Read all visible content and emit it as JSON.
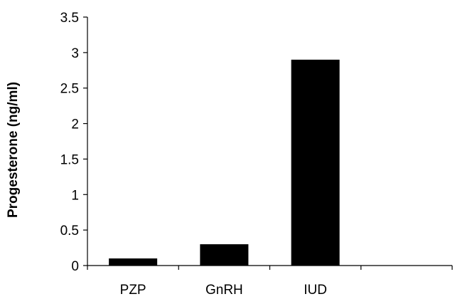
{
  "chart_data": {
    "type": "bar",
    "title": "",
    "xlabel": "",
    "ylabel": "Progesterone (ng/ml)",
    "categories": [
      "PZP",
      "GnRH",
      "IUD",
      ""
    ],
    "values": [
      0.1,
      0.3,
      2.9,
      null
    ],
    "ylim": [
      0,
      3.5
    ],
    "yticks": [
      "0",
      "0.5",
      "1",
      "1.5",
      "2",
      "2.5",
      "3",
      "3.5"
    ],
    "grid": false,
    "legend": "none",
    "bar_color": "#000000"
  }
}
